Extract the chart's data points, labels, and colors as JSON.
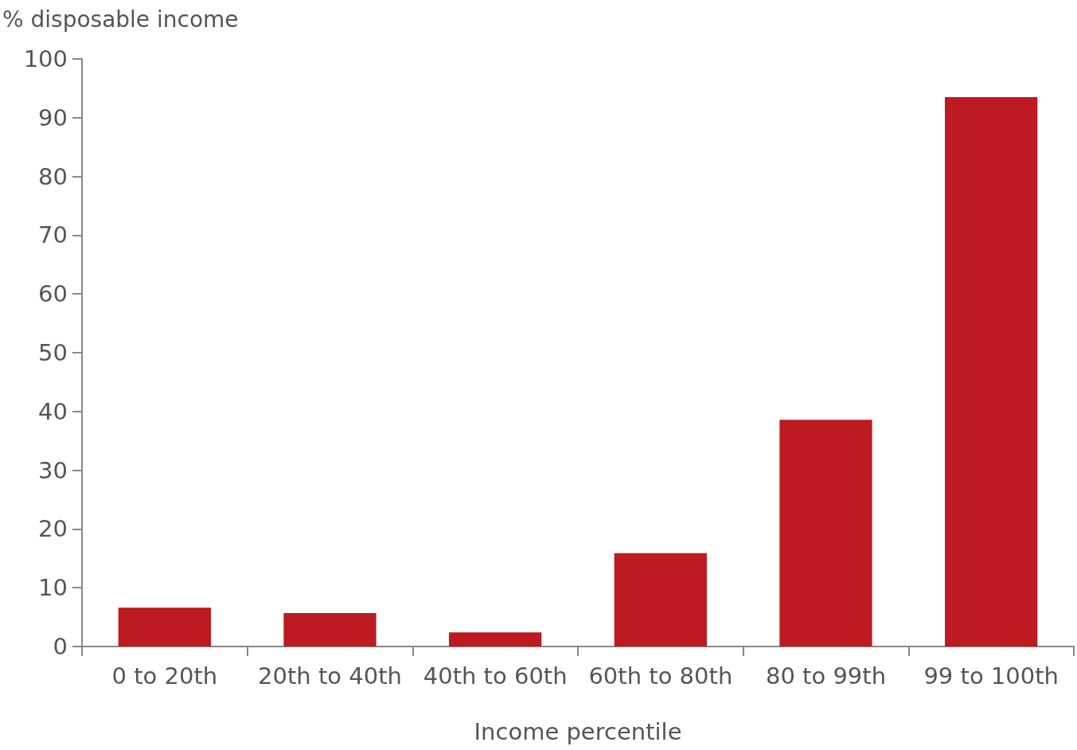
{
  "chart_data": {
    "type": "bar",
    "ylabel": "% disposable income",
    "xlabel": "Income percentile",
    "categories": [
      "0 to 20th",
      "20th to 40th",
      "40th to 60th",
      "60th to 80th",
      "80 to 99th",
      "99 to 100th"
    ],
    "values": [
      6.6,
      5.7,
      2.4,
      15.9,
      38.6,
      93.5
    ],
    "color": "#be1a22",
    "ylim": [
      0,
      100
    ],
    "yticks": [
      0,
      10,
      20,
      30,
      40,
      50,
      60,
      70,
      80,
      90,
      100
    ],
    "grid": false
  }
}
